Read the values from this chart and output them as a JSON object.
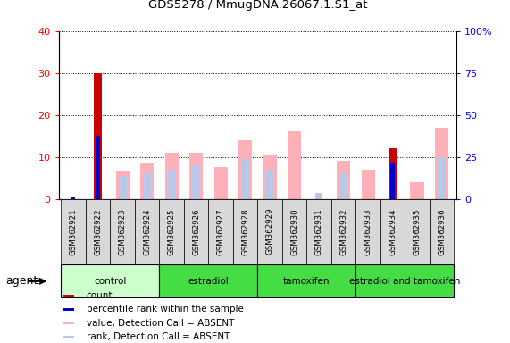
{
  "title": "GDS5278 / MmugDNA.26067.1.S1_at",
  "samples": [
    "GSM362921",
    "GSM362922",
    "GSM362923",
    "GSM362924",
    "GSM362925",
    "GSM362926",
    "GSM362927",
    "GSM362928",
    "GSM362929",
    "GSM362930",
    "GSM362931",
    "GSM362932",
    "GSM362933",
    "GSM362934",
    "GSM362935",
    "GSM362936"
  ],
  "count": [
    0,
    30,
    0,
    0,
    0,
    0,
    0,
    0,
    0,
    0,
    0,
    0,
    0,
    12,
    0,
    0
  ],
  "rank": [
    0.4,
    15,
    0,
    0,
    0,
    0,
    0,
    0,
    0,
    0,
    0,
    0,
    0,
    8.5,
    0,
    0
  ],
  "value_absent": [
    0,
    0,
    6.5,
    8.5,
    11,
    11,
    7.5,
    14,
    10.5,
    16,
    0,
    9,
    7,
    0,
    4,
    17
  ],
  "rank_absent": [
    0,
    0,
    5.5,
    6,
    7,
    8,
    0,
    9.5,
    7,
    0,
    1.5,
    6,
    0,
    0,
    0,
    10
  ],
  "groups": [
    {
      "label": "control",
      "start": 0,
      "end": 3,
      "color": "#aaffaa"
    },
    {
      "label": "estradiol",
      "start": 4,
      "end": 7,
      "color": "#44ee44"
    },
    {
      "label": "tamoxifen",
      "start": 8,
      "end": 11,
      "color": "#44ee44"
    },
    {
      "label": "estradiol and tamoxifen",
      "start": 12,
      "end": 15,
      "color": "#44ee44"
    }
  ],
  "ylim_left": [
    0,
    40
  ],
  "ylim_right": [
    0,
    100
  ],
  "yticks_left": [
    0,
    10,
    20,
    30,
    40
  ],
  "yticks_right": [
    0,
    25,
    50,
    75,
    100
  ],
  "count_color": "#CC0000",
  "rank_color": "#0000CC",
  "value_absent_color": "#FFB0B8",
  "rank_absent_color": "#B8C8E8",
  "xtick_bg": "#d8d8d8",
  "agent_label": "agent",
  "legend_items": [
    {
      "label": "count",
      "color": "#CC0000"
    },
    {
      "label": "percentile rank within the sample",
      "color": "#0000CC"
    },
    {
      "label": "value, Detection Call = ABSENT",
      "color": "#FFB0B8"
    },
    {
      "label": "rank, Detection Call = ABSENT",
      "color": "#B8C8E8"
    }
  ]
}
